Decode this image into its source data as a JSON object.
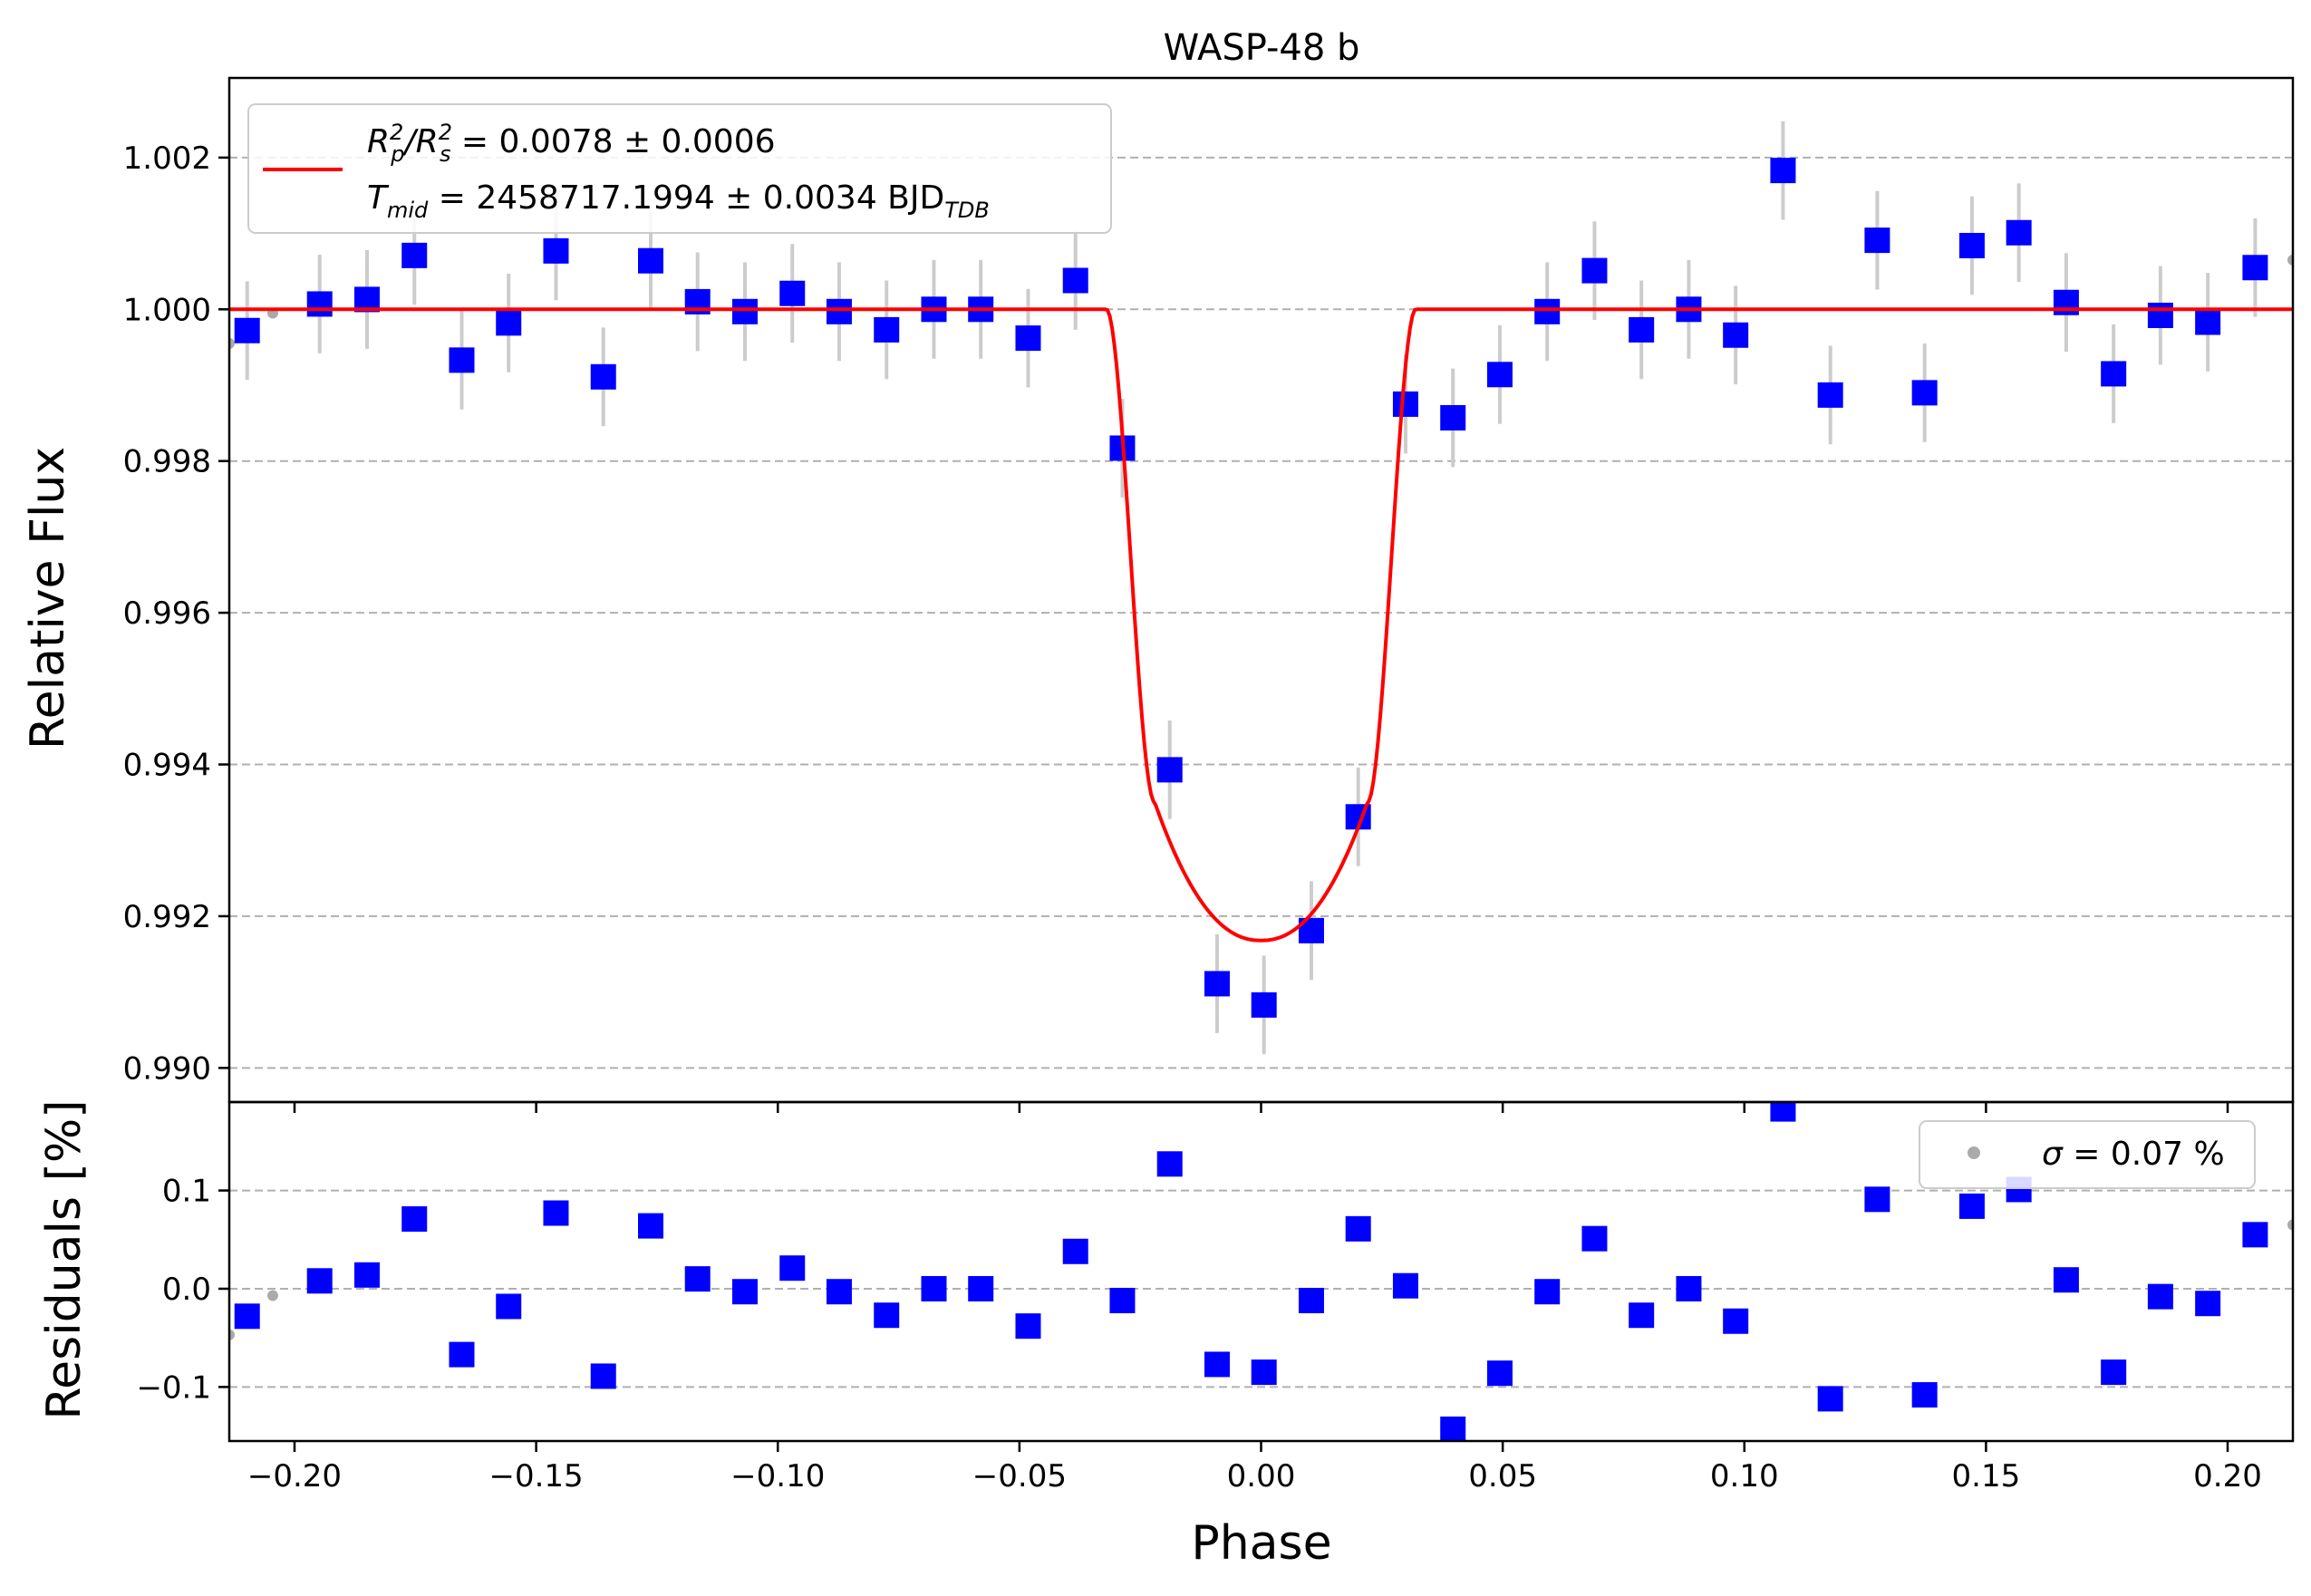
{
  "chart_data": {
    "type": "scatter",
    "title": "WASP-48 b",
    "xlabel": "Phase",
    "xlim": [
      -0.2135,
      0.2135
    ],
    "x_ticks": [
      -0.2,
      -0.15,
      -0.1,
      -0.05,
      0.0,
      0.05,
      0.1,
      0.15,
      0.2
    ],
    "x_tick_labels": [
      "−0.20",
      "−0.15",
      "−0.10",
      "−0.05",
      "0.00",
      "0.05",
      "0.10",
      "0.15",
      "0.20"
    ],
    "grid": "horizontal dashed",
    "panels": [
      {
        "name": "flux",
        "ylabel": "Relative Flux",
        "ylim": [
          0.98955,
          1.00305
        ],
        "y_ticks": [
          0.99,
          0.992,
          0.994,
          0.996,
          0.998,
          1.0,
          1.002
        ],
        "y_tick_labels": [
          "0.990",
          "0.992",
          "0.994",
          "0.996",
          "0.998",
          "1.000",
          "1.002"
        ],
        "legend": {
          "placement": "upper-left",
          "line1_lhs_main": "R",
          "line1_lhs_sub": "p",
          "line1_lhs_sup": "2",
          "line1_slash": "/",
          "line1_rhs_main": "R",
          "line1_rhs_sub": "s",
          "line1_rhs_sup": "2",
          "line1_value": " = 0.0078 ± 0.0006",
          "line2_main": "T",
          "line2_sub": "mid",
          "line2_value": " = 2458717.1994 ± 0.0034 BJD",
          "line2_unit_sub": "TDB"
        },
        "model": {
          "color": "#ff0000",
          "baseline": 1.0,
          "depth_center": 0.99168,
          "contact_points": [
            -0.032,
            -0.022,
            0.022,
            0.032
          ],
          "ingress_flux": 0.9935
        },
        "raw_points": {
          "color": "#aaaaaa",
          "x": [
            -0.2135,
            -0.2045,
            0.2135
          ],
          "y": [
            0.99955,
            0.99995,
            1.00065
          ]
        },
        "binned": {
          "color": "#0000ff",
          "error_color": "#cccccc",
          "yerr": 0.00065,
          "x": [
            -0.2098,
            -0.1948,
            -0.185,
            -0.1752,
            -0.1654,
            -0.1557,
            -0.1459,
            -0.1361,
            -0.1263,
            -0.1166,
            -0.1068,
            -0.097,
            -0.0873,
            -0.0775,
            -0.0677,
            -0.058,
            -0.0482,
            -0.0384,
            -0.0287,
            -0.0189,
            -0.0091,
            0.0006,
            0.0104,
            0.0201,
            0.0299,
            0.0397,
            0.0494,
            0.0592,
            0.069,
            0.0787,
            0.0885,
            0.0982,
            0.108,
            0.1178,
            0.1275,
            0.1373,
            0.1471,
            0.1568,
            0.1666,
            0.1764,
            0.1861,
            0.1959,
            0.2057
          ],
          "y": [
            0.99972,
            1.00007,
            1.00013,
            1.00071,
            0.99933,
            0.99982,
            1.00077,
            0.99911,
            1.00064,
            1.0001,
            0.99997,
            1.00021,
            0.99997,
            0.99973,
            1.0,
            1.0,
            0.99962,
            1.00038,
            0.99817,
            0.99393,
            0.99111,
            0.99083,
            0.99181,
            0.99331,
            0.99875,
            0.99857,
            0.99914,
            0.99997,
            1.00051,
            0.99973,
            1.0,
            0.99966,
            1.00183,
            0.99887,
            1.00091,
            0.9989,
            1.00084,
            1.00101,
            1.00009,
            0.99915,
            0.99992,
            0.99983,
            1.00055
          ]
        }
      },
      {
        "name": "residuals",
        "ylabel": "Residuals [%]",
        "ylim": [
          -0.155,
          0.19
        ],
        "y_ticks": [
          -0.1,
          0.0,
          0.1
        ],
        "y_tick_labels": [
          "−0.1",
          "0.0",
          "0.1"
        ],
        "legend": {
          "placement": "upper-right",
          "sigma_symbol": "σ",
          "text": " = 0.07 %"
        },
        "raw_points": {
          "color": "#aaaaaa",
          "x": [
            -0.2135,
            -0.2045,
            0.2135
          ],
          "y": [
            -0.047,
            -0.007,
            0.065
          ]
        },
        "binned": {
          "color": "#0000ff",
          "x": [
            -0.2098,
            -0.1948,
            -0.185,
            -0.1752,
            -0.1654,
            -0.1557,
            -0.1459,
            -0.1361,
            -0.1263,
            -0.1166,
            -0.1068,
            -0.097,
            -0.0873,
            -0.0775,
            -0.0677,
            -0.058,
            -0.0482,
            -0.0384,
            -0.0287,
            -0.0189,
            -0.0091,
            0.0006,
            0.0104,
            0.0201,
            0.0299,
            0.0397,
            0.0494,
            0.0592,
            0.069,
            0.0787,
            0.0885,
            0.0982,
            0.108,
            0.1178,
            0.1275,
            0.1373,
            0.1471,
            0.1568,
            0.1666,
            0.1764,
            0.1861,
            0.1959,
            0.2057
          ],
          "y": [
            -0.028,
            0.008,
            0.014,
            0.071,
            -0.067,
            -0.018,
            0.077,
            -0.089,
            0.064,
            0.01,
            -0.003,
            0.021,
            -0.003,
            -0.027,
            0.0,
            0.0,
            -0.038,
            0.038,
            -0.012,
            0.127,
            -0.077,
            -0.085,
            -0.012,
            0.061,
            0.003,
            -0.143,
            -0.086,
            -0.003,
            0.051,
            -0.027,
            0.0,
            -0.033,
            0.183,
            -0.112,
            0.091,
            -0.108,
            0.084,
            0.101,
            0.009,
            -0.085,
            -0.008,
            -0.015,
            0.055
          ]
        }
      }
    ]
  }
}
